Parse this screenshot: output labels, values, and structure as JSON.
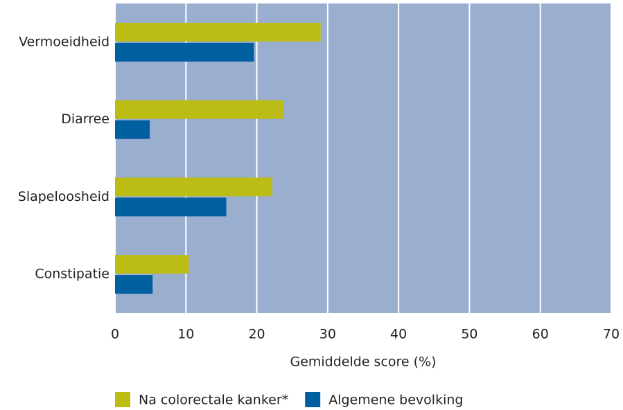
{
  "chart_data": {
    "type": "bar",
    "orientation": "horizontal",
    "categories": [
      "Vermoeidheid",
      "Diarree",
      "Slapeloosheid",
      "Constipatie"
    ],
    "series": [
      {
        "name": "Na colorectale kanker*",
        "color": "#bcbd14",
        "values": [
          29.0,
          23.8,
          22.2,
          10.4
        ]
      },
      {
        "name": "Algemene bevolking",
        "color": "#005f9e",
        "values": [
          19.6,
          4.9,
          15.7,
          5.3
        ]
      }
    ],
    "xlabel": "Gemiddelde score (%)",
    "xlim": [
      0,
      70
    ],
    "xticks": [
      0,
      10,
      20,
      30,
      40,
      50,
      60,
      70
    ],
    "grid": true,
    "background": "#9aaed0",
    "legend": "bottom"
  }
}
